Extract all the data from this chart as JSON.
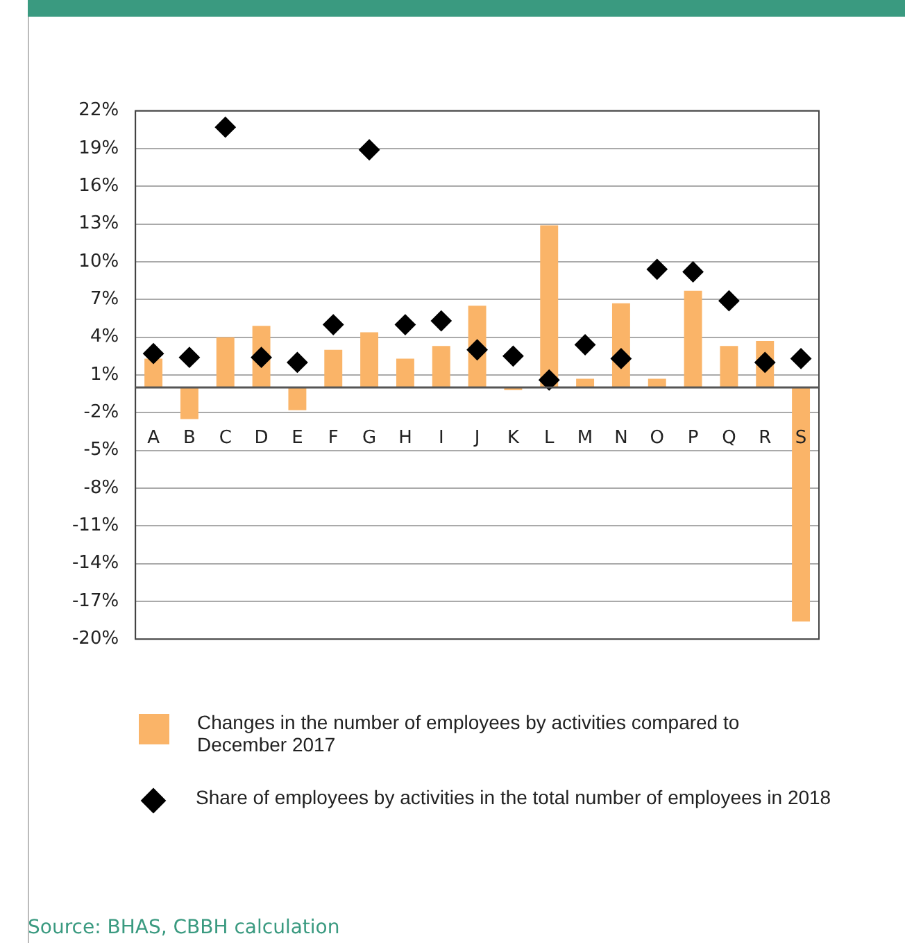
{
  "chart_data": {
    "type": "bar",
    "categories": [
      "A",
      "B",
      "C",
      "D",
      "E",
      "F",
      "G",
      "H",
      "I",
      "J",
      "K",
      "L",
      "M",
      "N",
      "O",
      "P",
      "Q",
      "R",
      "S"
    ],
    "series": [
      {
        "name": "Changes in the number of employees by activities compared to December 2017",
        "color": "#fab468",
        "values": [
          2.3,
          -2.5,
          4.0,
          4.9,
          -1.8,
          3.0,
          4.4,
          2.3,
          3.3,
          6.5,
          -0.2,
          12.9,
          0.7,
          6.7,
          0.7,
          7.7,
          3.3,
          3.7,
          -18.6
        ]
      },
      {
        "type": "scatter",
        "name": "Share of employees by activities in the total number of employees in 2018",
        "color": "#000000",
        "marker": "diamond",
        "values": [
          2.7,
          2.4,
          20.7,
          2.4,
          2.0,
          5.0,
          18.9,
          5.0,
          5.3,
          3.0,
          2.5,
          0.6,
          3.4,
          2.3,
          9.4,
          9.2,
          6.9,
          2.0,
          2.3
        ]
      }
    ],
    "ylim": [
      -20,
      22
    ],
    "yticks": [
      {
        "value": 22,
        "label": "22%"
      },
      {
        "value": 19,
        "label": "19%"
      },
      {
        "value": 16,
        "label": "16%"
      },
      {
        "value": 13,
        "label": "13%"
      },
      {
        "value": 10,
        "label": "10%"
      },
      {
        "value": 7,
        "label": "7%"
      },
      {
        "value": 4,
        "label": "4%"
      },
      {
        "value": 1,
        "label": "1%"
      },
      {
        "value": -2,
        "label": "-2%"
      },
      {
        "value": -5,
        "label": "-5%"
      },
      {
        "value": -8,
        "label": "-8%"
      },
      {
        "value": -11,
        "label": "-11%"
      },
      {
        "value": -14,
        "label": "-14%"
      },
      {
        "value": -17,
        "label": "-17%"
      },
      {
        "value": -20,
        "label": "-20%"
      }
    ],
    "grid": "y",
    "legend": "bottom",
    "annotations": [
      "Source: BHAS, CBBH calculation"
    ]
  }
}
